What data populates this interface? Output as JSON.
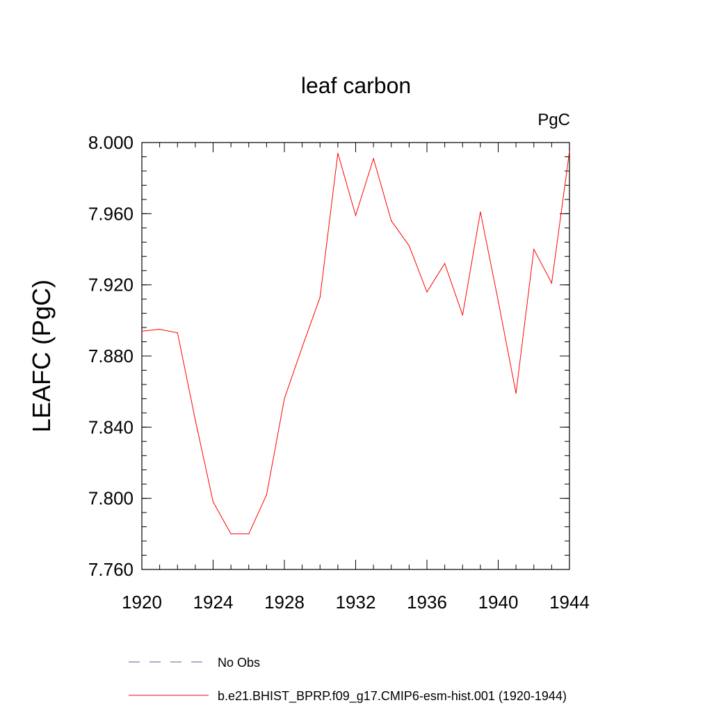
{
  "chart_data": {
    "type": "line",
    "title": "leaf carbon",
    "units_label": "PgC",
    "ylabel": "LEAFC  (PgC)",
    "xlabel": "",
    "xlim": [
      1920,
      1944
    ],
    "ylim": [
      7.76,
      8.0
    ],
    "x_ticks": [
      "1920",
      "1924",
      "1928",
      "1932",
      "1936",
      "1940",
      "1944"
    ],
    "y_ticks": [
      "7.760",
      "7.800",
      "7.840",
      "7.880",
      "7.920",
      "7.960",
      "8.000"
    ],
    "grid": false,
    "series": [
      {
        "name": "b.e21.BHIST_BPRP.f09_g17.CMIP6-esm-hist.001 (1920-1944)",
        "color": "#ff0000",
        "x": [
          1920,
          1921,
          1922,
          1923,
          1924,
          1925,
          1926,
          1927,
          1928,
          1929,
          1930,
          1931,
          1932,
          1933,
          1934,
          1935,
          1936,
          1937,
          1938,
          1939,
          1940,
          1941,
          1942,
          1943,
          1944
        ],
        "y": [
          7.894,
          7.895,
          7.893,
          7.844,
          7.798,
          7.78,
          7.78,
          7.802,
          7.856,
          7.885,
          7.913,
          7.994,
          7.959,
          7.991,
          7.956,
          7.942,
          7.916,
          7.932,
          7.903,
          7.961,
          7.911,
          7.859,
          7.94,
          7.921,
          7.995
        ]
      }
    ],
    "legend": {
      "placement": "bottom",
      "entries": [
        {
          "label": "No Obs",
          "color": "#5a5aa0",
          "style": "dashed"
        },
        {
          "label": "b.e21.BHIST_BPRP.f09_g17.CMIP6-esm-hist.001 (1920-1944)",
          "color": "#ff0000",
          "style": "solid"
        }
      ]
    }
  }
}
